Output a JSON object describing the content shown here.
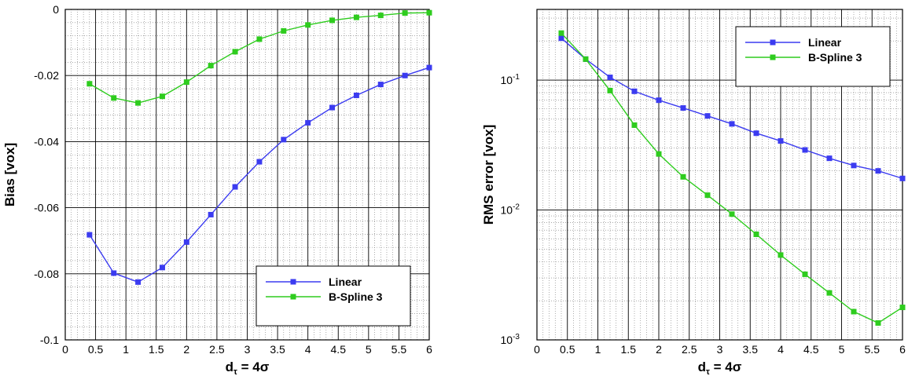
{
  "chart_data": [
    {
      "type": "line",
      "title": "",
      "xlabel": "d_τ = 4σ",
      "xlabel_main": "d",
      "xlabel_sub": "τ",
      "xlabel_rest": " = 4σ",
      "ylabel": "Bias [vox]",
      "xlim": [
        0,
        6
      ],
      "ylim": [
        -0.1,
        0
      ],
      "xticks": [
        0,
        0.5,
        1,
        1.5,
        2,
        2.5,
        3,
        3.5,
        4,
        4.5,
        5,
        5.5,
        6
      ],
      "xtick_labels": [
        "0",
        "0.5",
        "1",
        "1.5",
        "2",
        "2.5",
        "3",
        "3.5",
        "4",
        "4.5",
        "5",
        "5.5",
        "6"
      ],
      "yticks": [
        -0.1,
        -0.08,
        -0.06,
        -0.04,
        -0.02,
        0
      ],
      "ytick_labels": [
        "-0.1",
        "-0.08",
        "-0.06",
        "-0.04",
        "-0.02",
        "0"
      ],
      "yscale": "linear",
      "grid": true,
      "legend_position": "bottom-right",
      "x": [
        0.4,
        0.8,
        1.2,
        1.6,
        2.0,
        2.4,
        2.8,
        3.2,
        3.6,
        4.0,
        4.4,
        4.8,
        5.2,
        5.6,
        6.0
      ],
      "series": [
        {
          "name": "Linear",
          "color": "#3b3bf0",
          "values": [
            -0.0682,
            -0.0798,
            -0.0825,
            -0.0781,
            -0.0704,
            -0.0621,
            -0.0537,
            -0.0461,
            -0.0394,
            -0.0343,
            -0.0297,
            -0.026,
            -0.0227,
            -0.02,
            -0.0176
          ]
        },
        {
          "name": "B-Spline 3",
          "color": "#2ecc1e",
          "values": [
            -0.0225,
            -0.0268,
            -0.0283,
            -0.0263,
            -0.022,
            -0.017,
            -0.0128,
            -0.009,
            -0.0065,
            -0.0047,
            -0.0033,
            -0.0024,
            -0.0018,
            -0.0011,
            -0.001
          ]
        }
      ]
    },
    {
      "type": "line",
      "title": "",
      "xlabel": "d_τ = 4σ",
      "xlabel_main": "d",
      "xlabel_sub": "τ",
      "xlabel_rest": " = 4σ",
      "ylabel": "RMS error [vox]",
      "xlim": [
        0,
        6
      ],
      "ylim": [
        0.001,
        0.35
      ],
      "xticks": [
        0,
        0.5,
        1,
        1.5,
        2,
        2.5,
        3,
        3.5,
        4,
        4.5,
        5,
        5.5,
        6
      ],
      "xtick_labels": [
        "0",
        "0.5",
        "1",
        "1.5",
        "2",
        "2.5",
        "3",
        "3.5",
        "4",
        "4.5",
        "5",
        "5.5",
        "6"
      ],
      "yticks": [
        0.001,
        0.01,
        0.1
      ],
      "ytick_bases": [
        "10",
        "10",
        "10"
      ],
      "ytick_exponents": [
        "-3",
        "-2",
        "-1"
      ],
      "yscale": "log",
      "grid": true,
      "legend_position": "top-right",
      "x": [
        0.4,
        0.8,
        1.2,
        1.6,
        2.0,
        2.4,
        2.8,
        3.2,
        3.6,
        4.0,
        4.4,
        4.8,
        5.2,
        5.6,
        6.0
      ],
      "series": [
        {
          "name": "Linear",
          "color": "#3b3bf0",
          "values": [
            0.21,
            0.145,
            0.105,
            0.082,
            0.07,
            0.061,
            0.053,
            0.046,
            0.039,
            0.034,
            0.029,
            0.025,
            0.022,
            0.02,
            0.0175
          ]
        },
        {
          "name": "B-Spline 3",
          "color": "#2ecc1e",
          "values": [
            0.23,
            0.145,
            0.083,
            0.045,
            0.027,
            0.018,
            0.013,
            0.0093,
            0.0065,
            0.0045,
            0.0032,
            0.0023,
            0.00165,
            0.00135,
            0.00178
          ]
        }
      ]
    }
  ]
}
